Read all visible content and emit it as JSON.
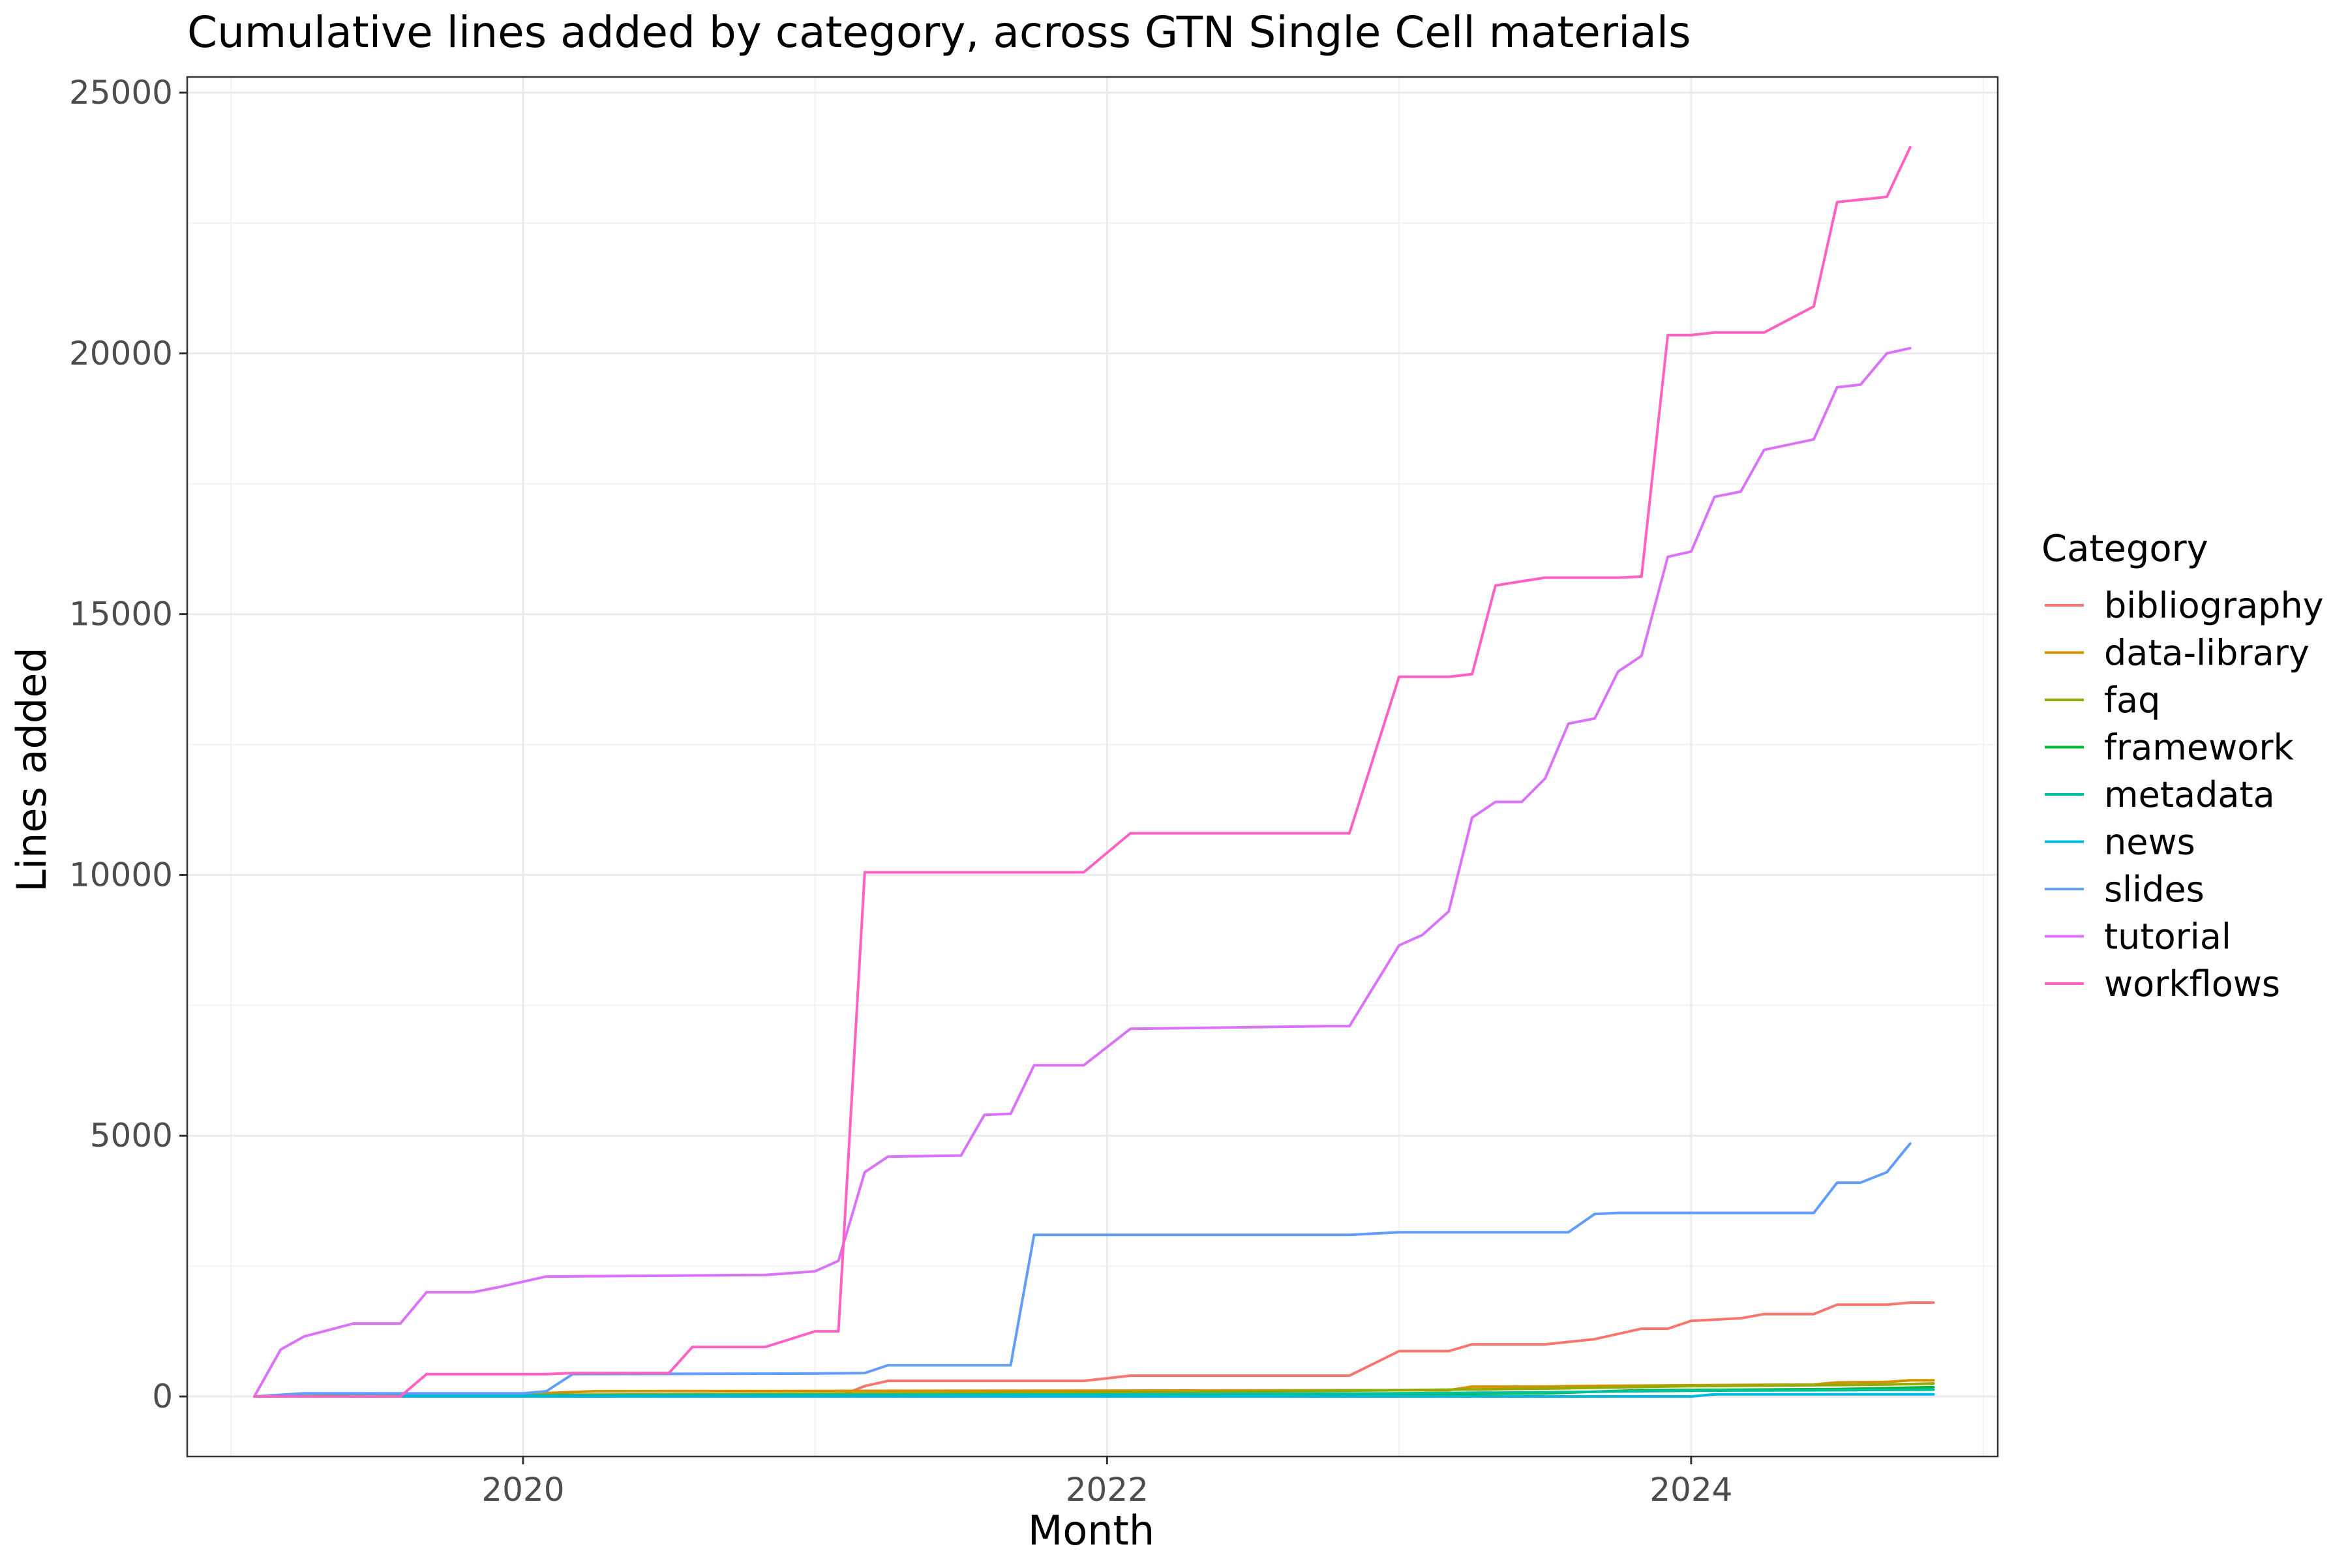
{
  "chart_data": {
    "type": "line",
    "title": "Cumulative lines added by category, across GTN Single Cell materials",
    "xlabel": "Month",
    "ylabel": "Lines added",
    "xlim": [
      2018.85,
      2025.05
    ],
    "ylim": [
      -1150,
      25300
    ],
    "x_ticks": [
      2020,
      2022,
      2024
    ],
    "x_tick_labels": [
      "2020",
      "2022",
      "2024"
    ],
    "x_minor_ticks": [
      2019,
      2021,
      2023,
      2025
    ],
    "y_ticks": [
      0,
      5000,
      10000,
      15000,
      20000,
      25000
    ],
    "y_tick_labels": [
      "0",
      "5000",
      "10000",
      "15000",
      "20000",
      "25000"
    ],
    "y_minor_ticks": [
      2500,
      7500,
      12500,
      17500,
      22500
    ],
    "grid": true,
    "legend": {
      "title": "Category",
      "position": "right"
    },
    "series": [
      {
        "name": "bibliography",
        "color": "#F8766D",
        "points": [
          [
            2019.08,
            0
          ],
          [
            2021.08,
            0
          ],
          [
            2021.17,
            200
          ],
          [
            2021.25,
            300
          ],
          [
            2021.92,
            300
          ],
          [
            2022.08,
            400
          ],
          [
            2022.83,
            400
          ],
          [
            2023.0,
            870
          ],
          [
            2023.17,
            870
          ],
          [
            2023.25,
            1000
          ],
          [
            2023.5,
            1000
          ],
          [
            2023.67,
            1100
          ],
          [
            2023.83,
            1300
          ],
          [
            2023.92,
            1300
          ],
          [
            2024.0,
            1450
          ],
          [
            2024.17,
            1500
          ],
          [
            2024.25,
            1580
          ],
          [
            2024.42,
            1580
          ],
          [
            2024.5,
            1760
          ],
          [
            2024.67,
            1760
          ],
          [
            2024.75,
            1800
          ],
          [
            2024.83,
            1800
          ]
        ]
      },
      {
        "name": "data-library",
        "color": "#D39200",
        "points": [
          [
            2019.08,
            0
          ],
          [
            2020.0,
            50
          ],
          [
            2020.25,
            100
          ],
          [
            2023.17,
            120
          ],
          [
            2023.25,
            190
          ],
          [
            2023.5,
            190
          ],
          [
            2023.58,
            200
          ],
          [
            2024.42,
            230
          ],
          [
            2024.5,
            270
          ],
          [
            2024.67,
            280
          ],
          [
            2024.75,
            310
          ],
          [
            2024.83,
            310
          ]
        ]
      },
      {
        "name": "faq",
        "color": "#93AA00",
        "points": [
          [
            2019.08,
            0
          ],
          [
            2020.0,
            30
          ],
          [
            2021.0,
            50
          ],
          [
            2022.0,
            70
          ],
          [
            2023.0,
            120
          ],
          [
            2023.5,
            150
          ],
          [
            2024.0,
            200
          ],
          [
            2024.5,
            220
          ],
          [
            2024.67,
            230
          ],
          [
            2024.83,
            250
          ]
        ]
      },
      {
        "name": "framework",
        "color": "#00BA38",
        "points": [
          [
            2019.08,
            0
          ],
          [
            2021.0,
            10
          ],
          [
            2022.0,
            20
          ],
          [
            2023.0,
            40
          ],
          [
            2023.5,
            60
          ],
          [
            2023.83,
            120
          ],
          [
            2024.5,
            140
          ],
          [
            2024.67,
            160
          ],
          [
            2024.83,
            180
          ]
        ]
      },
      {
        "name": "metadata",
        "color": "#00C19F",
        "points": [
          [
            2019.08,
            0
          ],
          [
            2020.0,
            20
          ],
          [
            2021.0,
            30
          ],
          [
            2022.0,
            40
          ],
          [
            2023.0,
            60
          ],
          [
            2023.5,
            80
          ],
          [
            2024.0,
            110
          ],
          [
            2024.5,
            120
          ],
          [
            2024.83,
            130
          ]
        ]
      },
      {
        "name": "news",
        "color": "#00B9E3",
        "points": [
          [
            2019.08,
            0
          ],
          [
            2024.0,
            0
          ],
          [
            2024.08,
            40
          ],
          [
            2024.83,
            40
          ]
        ]
      },
      {
        "name": "slides",
        "color": "#619CFF",
        "points": [
          [
            2019.08,
            0
          ],
          [
            2019.25,
            60
          ],
          [
            2020.0,
            60
          ],
          [
            2020.08,
            100
          ],
          [
            2020.17,
            430
          ],
          [
            2021.0,
            440
          ],
          [
            2021.17,
            450
          ],
          [
            2021.25,
            600
          ],
          [
            2021.67,
            600
          ],
          [
            2021.75,
            3100
          ],
          [
            2022.83,
            3100
          ],
          [
            2023.0,
            3150
          ],
          [
            2023.58,
            3150
          ],
          [
            2023.67,
            3500
          ],
          [
            2023.75,
            3520
          ],
          [
            2024.42,
            3520
          ],
          [
            2024.5,
            4100
          ],
          [
            2024.58,
            4100
          ],
          [
            2024.67,
            4300
          ],
          [
            2024.75,
            4850
          ]
        ]
      },
      {
        "name": "tutorial",
        "color": "#DB72FB",
        "points": [
          [
            2019.08,
            0
          ],
          [
            2019.17,
            900
          ],
          [
            2019.25,
            1150
          ],
          [
            2019.42,
            1400
          ],
          [
            2019.58,
            1400
          ],
          [
            2019.67,
            2000
          ],
          [
            2019.83,
            2000
          ],
          [
            2019.92,
            2100
          ],
          [
            2020.08,
            2300
          ],
          [
            2020.83,
            2330
          ],
          [
            2021.0,
            2400
          ],
          [
            2021.08,
            2600
          ],
          [
            2021.17,
            4300
          ],
          [
            2021.25,
            4600
          ],
          [
            2021.5,
            4620
          ],
          [
            2021.58,
            5400
          ],
          [
            2021.67,
            5420
          ],
          [
            2021.75,
            6350
          ],
          [
            2021.92,
            6350
          ],
          [
            2022.08,
            7050
          ],
          [
            2022.75,
            7100
          ],
          [
            2022.83,
            7100
          ],
          [
            2023.0,
            8650
          ],
          [
            2023.08,
            8850
          ],
          [
            2023.17,
            9300
          ],
          [
            2023.25,
            11100
          ],
          [
            2023.33,
            11400
          ],
          [
            2023.42,
            11400
          ],
          [
            2023.5,
            11850
          ],
          [
            2023.58,
            12900
          ],
          [
            2023.67,
            13000
          ],
          [
            2023.75,
            13900
          ],
          [
            2023.83,
            14200
          ],
          [
            2023.92,
            16100
          ],
          [
            2024.0,
            16200
          ],
          [
            2024.08,
            17250
          ],
          [
            2024.17,
            17350
          ],
          [
            2024.25,
            18150
          ],
          [
            2024.42,
            18350
          ],
          [
            2024.5,
            19350
          ],
          [
            2024.58,
            19400
          ],
          [
            2024.67,
            20000
          ],
          [
            2024.75,
            20100
          ]
        ]
      },
      {
        "name": "workflows",
        "color": "#FF61C3",
        "points": [
          [
            2019.08,
            0
          ],
          [
            2019.58,
            0
          ],
          [
            2019.67,
            430
          ],
          [
            2020.08,
            430
          ],
          [
            2020.17,
            450
          ],
          [
            2020.5,
            450
          ],
          [
            2020.58,
            950
          ],
          [
            2020.83,
            950
          ],
          [
            2021.0,
            1250
          ],
          [
            2021.08,
            1250
          ],
          [
            2021.17,
            10050
          ],
          [
            2021.92,
            10050
          ],
          [
            2022.08,
            10800
          ],
          [
            2022.83,
            10800
          ],
          [
            2023.0,
            13800
          ],
          [
            2023.17,
            13800
          ],
          [
            2023.25,
            13850
          ],
          [
            2023.33,
            15550
          ],
          [
            2023.5,
            15700
          ],
          [
            2023.75,
            15700
          ],
          [
            2023.83,
            15720
          ],
          [
            2023.92,
            20350
          ],
          [
            2024.0,
            20350
          ],
          [
            2024.08,
            20400
          ],
          [
            2024.25,
            20400
          ],
          [
            2024.42,
            20900
          ],
          [
            2024.5,
            22900
          ],
          [
            2024.67,
            23000
          ],
          [
            2024.75,
            23950
          ]
        ]
      }
    ]
  }
}
